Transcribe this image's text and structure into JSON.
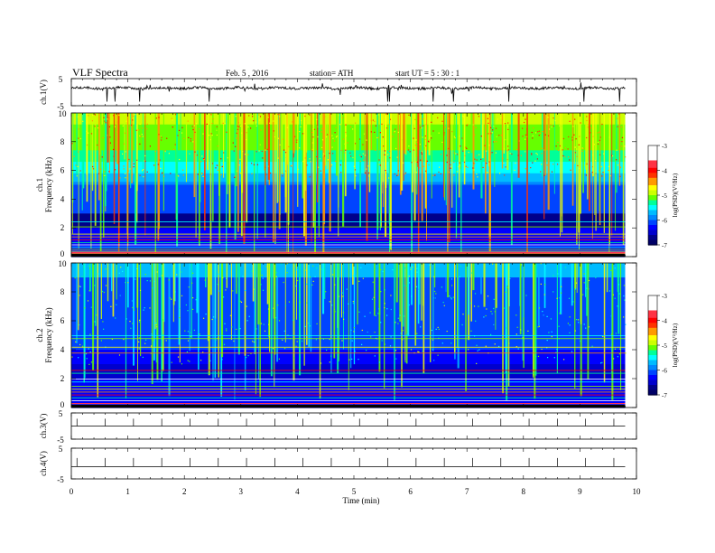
{
  "header": {
    "title": "VLF Spectra",
    "date": "Feb. 5 , 2016",
    "station": "station= ATH",
    "start": "start UT = 5 : 30 : 1"
  },
  "chart_data": {
    "type": "heatmap",
    "x_axis": {
      "label": "Time (min)",
      "range": [
        0,
        10
      ],
      "ticks": [
        "0",
        "1",
        "2",
        "3",
        "4",
        "5",
        "6",
        "7",
        "8",
        "9",
        "10"
      ],
      "data_end": 9.8
    },
    "panels": [
      {
        "id": "ch1-waveform",
        "type": "line",
        "ylabel": "ch.1(V)",
        "ylim": [
          -5,
          5
        ],
        "y_ticks": [
          "5",
          "-5"
        ],
        "description": "noisy waveform around +2 V with spikes"
      },
      {
        "id": "ch1-spectrogram",
        "type": "heatmap",
        "ylabel": "ch.1",
        "ylabel2": "Frequency (kHz)",
        "ylim": [
          0,
          10
        ],
        "y_ticks": [
          "0",
          "2",
          "4",
          "6",
          "8",
          "10"
        ],
        "colorbar": {
          "label": "log(PSD)(V²/Hz)",
          "range": [
            -7,
            -3
          ],
          "ticks": [
            "-3",
            "-4",
            "-5",
            "-6",
            "-7"
          ]
        }
      },
      {
        "id": "ch2-spectrogram",
        "type": "heatmap",
        "ylabel": "ch.2",
        "ylabel2": "Frequency (kHz)",
        "ylim": [
          0,
          10
        ],
        "y_ticks": [
          "0",
          "2",
          "4",
          "6",
          "8",
          "10"
        ],
        "colorbar": {
          "label": "log(PSD)(V²/Hz)",
          "range": [
            -7,
            -3
          ],
          "ticks": [
            "-3",
            "-4",
            "-5",
            "-6",
            "-7"
          ]
        }
      },
      {
        "id": "ch3-waveform",
        "type": "line",
        "ylabel": "ch.3(V)",
        "ylim": [
          -5,
          5
        ],
        "y_ticks": [
          "5",
          "-5"
        ],
        "description": "flat line near 0 V with periodic spikes"
      },
      {
        "id": "ch4-waveform",
        "type": "line",
        "ylabel": "ch.4(V)",
        "ylim": [
          -5,
          5
        ],
        "y_ticks": [
          "5",
          "-5"
        ],
        "description": "flat line near -1 V with periodic spikes"
      }
    ],
    "colormap": [
      "#000066",
      "#0000ff",
      "#0088ff",
      "#00ffff",
      "#00ff88",
      "#88ff00",
      "#ffff00",
      "#ff8800",
      "#ff0000",
      "#ffffff"
    ]
  }
}
